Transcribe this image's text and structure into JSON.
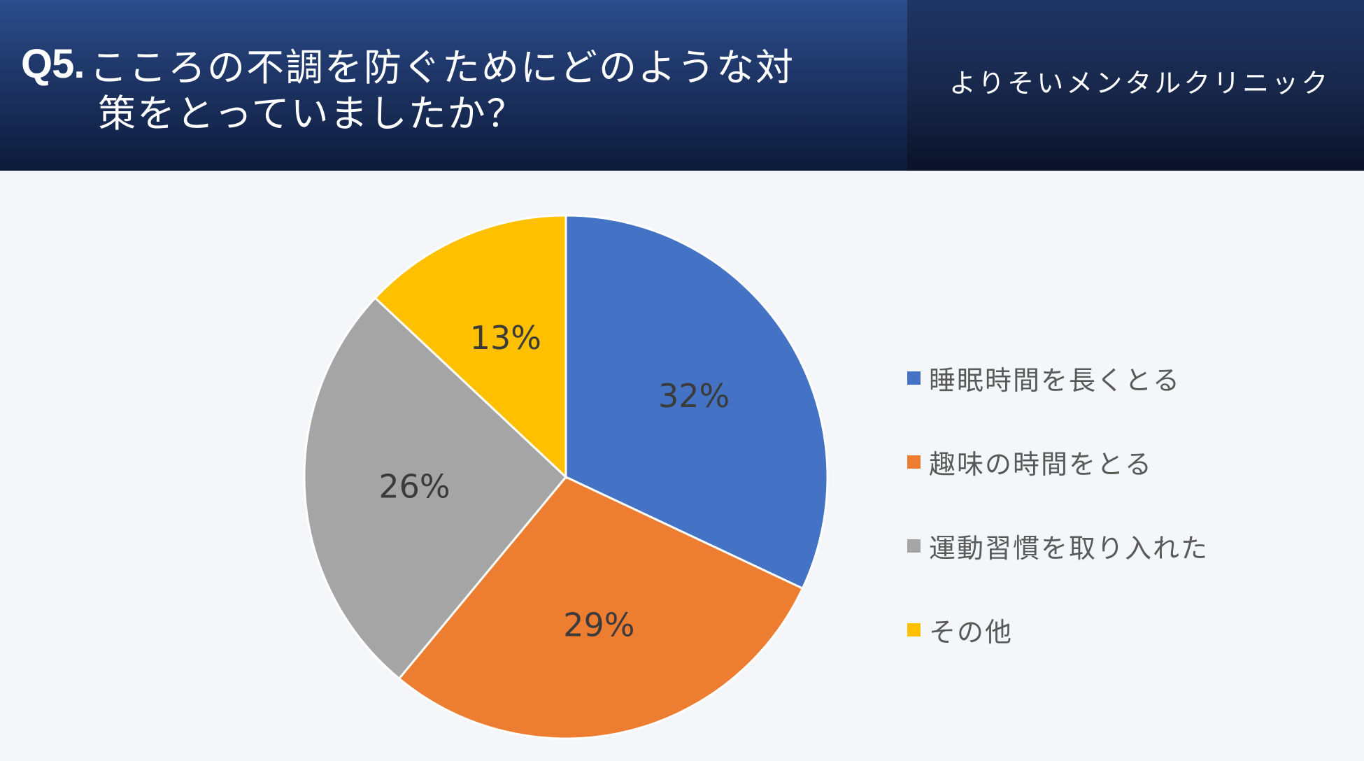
{
  "header": {
    "question_no": "Q5.",
    "title_line1": "こころの不調を防ぐためにどのような対",
    "title_line2": "策をとっていましたか？",
    "clinic_name": "よりそいメンタルクリニック"
  },
  "chart_data": {
    "type": "pie",
    "categories": [
      "睡眠時間を長くとる",
      "趣味の時間をとる",
      "運動習慣を取り入れた",
      "その他"
    ],
    "values": [
      32,
      29,
      26,
      13
    ],
    "labels": [
      "32%",
      "29%",
      "26%",
      "13%"
    ],
    "colors": [
      "#4472c4",
      "#ed7d31",
      "#a5a5a5",
      "#ffc000"
    ],
    "start_angle": "12 o'clock",
    "direction": "clockwise",
    "legend_position": "right"
  }
}
